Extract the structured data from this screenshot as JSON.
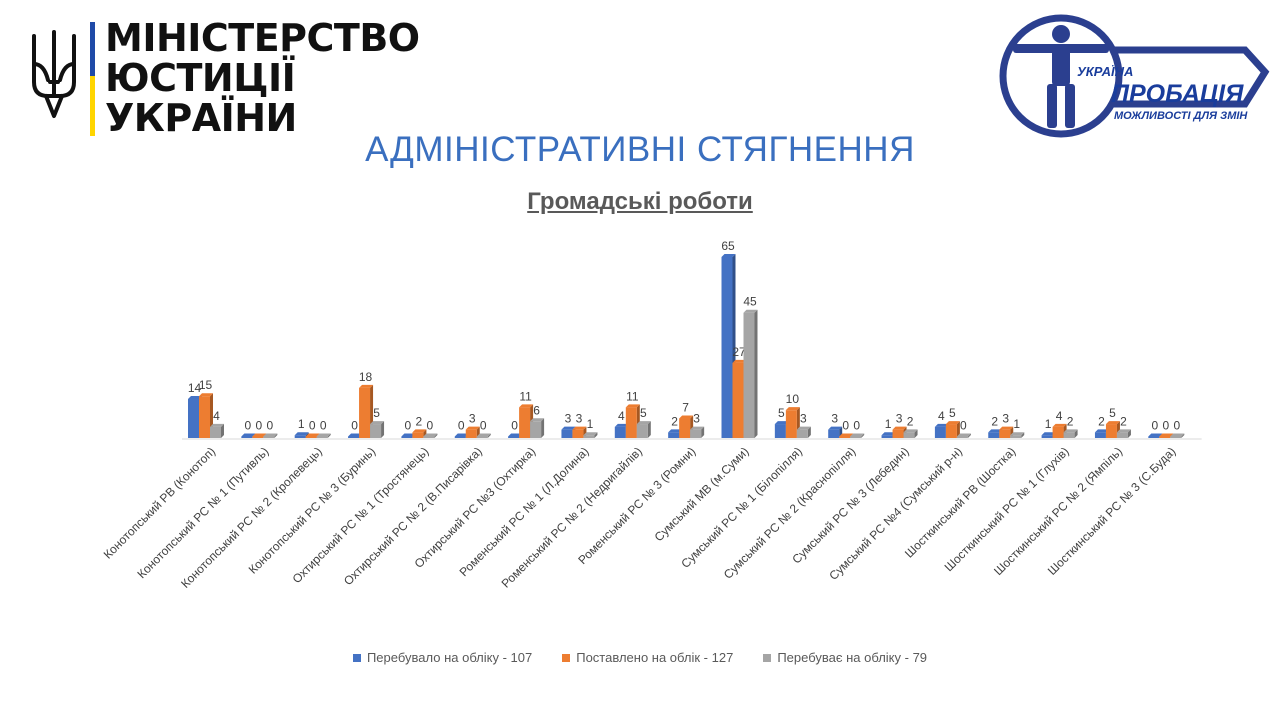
{
  "header": {
    "ministry_line1": "МІНІСТЕРСТВО",
    "ministry_line2": "ЮСТИЦІЇ УКРАЇНИ",
    "probation_ukraine": "УКРАЇНА",
    "probation_word": "ПРОБАЦІЯ",
    "probation_slogan": "МОЖЛИВОСТІ ДЛЯ ЗМІН"
  },
  "page_title": "АДМІНІСТРАТИВНІ СТЯГНЕННЯ",
  "colors": {
    "series1": "#4472c4",
    "series2": "#ed7d31",
    "series3": "#a5a5a5",
    "title": "#3a6fbf",
    "probation_navy": "#2b3f8f",
    "probation_text": "#1a3d9c"
  },
  "chart_data": {
    "type": "bar",
    "title": "Громадські роботи",
    "categories": [
      "Конотопський РВ (Конотоп)",
      "Конотопський РС № 1 (Путивль)",
      "Конотопський РС № 2 (Кролевець)",
      "Конотопський РС № 3 (Буринь)",
      "Охтирський РС № 1 (Тростянець)",
      "Охтирський РС № 2 (В.Писарівка)",
      "Охтирський РС №3 (Охтирка)",
      "Роменський РС № 1 (Л.Долина)",
      "Роменський РС № 2 (Недригайлів)",
      "Роменський РС № 3 (Ромни)",
      "Сумський МВ (м.Суми)",
      "Сумський РС № 1 (Білопілля)",
      "Сумський РС № 2 (Краснопілля)",
      "Сумський РС № 3 (Лебедин)",
      "Сумський РС №4 (Сумський р-н)",
      "Шосткинський РВ (Шостка)",
      "Шосткинський РС № 1 (Глухів)",
      "Шосткинський РС № 2 (Ямпіль)",
      "Шосткинський РС № 3 (С.Буда)"
    ],
    "series": [
      {
        "name": "Перебувало на обліку - 107",
        "values": [
          14,
          0,
          1,
          0,
          0,
          0,
          0,
          3,
          4,
          2,
          65,
          5,
          3,
          1,
          4,
          2,
          1,
          2,
          0
        ]
      },
      {
        "name": "Поставлено на облік - 127",
        "values": [
          15,
          0,
          0,
          18,
          2,
          3,
          11,
          3,
          11,
          7,
          27,
          10,
          0,
          3,
          5,
          3,
          4,
          5,
          0
        ]
      },
      {
        "name": "Перебуває на обліку - 79",
        "values": [
          4,
          0,
          0,
          5,
          0,
          0,
          6,
          1,
          5,
          3,
          45,
          3,
          0,
          2,
          0,
          1,
          2,
          2,
          0
        ]
      }
    ],
    "ylim": [
      0,
      65
    ],
    "grid": false,
    "legend_position": "bottom",
    "data_labels": true
  }
}
